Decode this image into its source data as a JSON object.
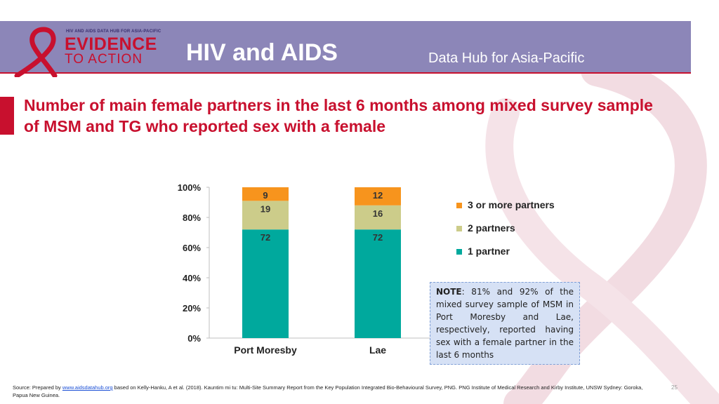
{
  "header": {
    "logo": {
      "top_text": "HIV AND AIDS DATA HUB FOR ASIA-PACIFIC",
      "line1": "EVIDENCE",
      "line2": "TO ACTION"
    },
    "title": "HIV and AIDS",
    "subtitle": "Data Hub for Asia-Pacific"
  },
  "slide": {
    "title": "Number of main female partners in the last 6 months among mixed survey sample of MSM and TG who reported sex with a female"
  },
  "colors": {
    "accent": "#c8102e",
    "header_bg": "#8c86b8",
    "one_partner": "#00a99d",
    "two_partners": "#cccc8a",
    "three_plus": "#f7941d"
  },
  "chart_data": {
    "type": "bar",
    "stacked": true,
    "categories": [
      "Port Moresby",
      "Lae"
    ],
    "series": [
      {
        "name": "1 partner",
        "values": [
          72,
          72
        ],
        "labels": [
          "72",
          "72"
        ]
      },
      {
        "name": "2 partners",
        "values": [
          19,
          16
        ],
        "labels": [
          "19",
          "16"
        ]
      },
      {
        "name": "3 or more partners",
        "values": [
          9,
          12
        ],
        "labels": [
          "9",
          "12"
        ]
      }
    ],
    "ylim": [
      0,
      100
    ],
    "yticks": [
      "0%",
      "20%",
      "40%",
      "60%",
      "80%",
      "100%"
    ],
    "legend": [
      "3 or more partners",
      "2 partners",
      "1 partner"
    ],
    "legend_position": "right",
    "grid": false
  },
  "note": {
    "label": "NOTE",
    "text": ": 81% and 92% of the mixed survey sample of MSM in Port Moresby and Lae, respectively, reported having sex with a female partner in the last 6 months"
  },
  "footer": {
    "source_prefix": "Source: Prepared by ",
    "source_link": "www.aidsdatahub.org",
    "source_suffix": " based on Kelly-Hanku, A et al. (2018). Kauntim mi tu: Multi-Site Summary Report from the Key Population Integrated Bio-Behavioural Survey, PNG. PNG Institute of Medical Research and Kirby Institute, UNSW Sydney: Goroka, Papua New Guinea.",
    "page_number": "25"
  }
}
